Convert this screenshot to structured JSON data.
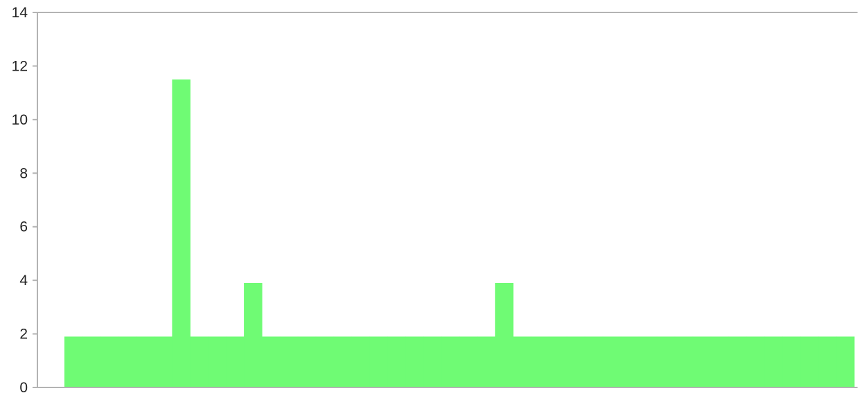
{
  "chart_data": {
    "type": "bar",
    "title": "",
    "xlabel": "",
    "ylabel": "",
    "ylim": [
      0,
      14
    ],
    "yticks": [
      0,
      2,
      4,
      6,
      8,
      10,
      12,
      14
    ],
    "grid": false,
    "legend": "none",
    "bar_color": "#6ffb74",
    "axis_color": "#b3b3b3",
    "values": [
      1.9,
      1.9,
      1.9,
      1.9,
      1.9,
      1.9,
      11.5,
      1.9,
      1.9,
      1.9,
      3.9,
      1.9,
      1.9,
      1.9,
      1.9,
      1.9,
      1.9,
      1.9,
      1.9,
      1.9,
      1.9,
      1.9,
      1.9,
      1.9,
      3.9,
      1.9,
      1.9,
      1.9,
      1.9,
      1.9,
      1.9,
      1.9,
      1.9,
      1.9,
      1.9,
      1.9,
      1.9,
      1.9,
      1.9,
      1.9,
      1.9,
      1.9,
      1.9,
      1.9
    ]
  }
}
